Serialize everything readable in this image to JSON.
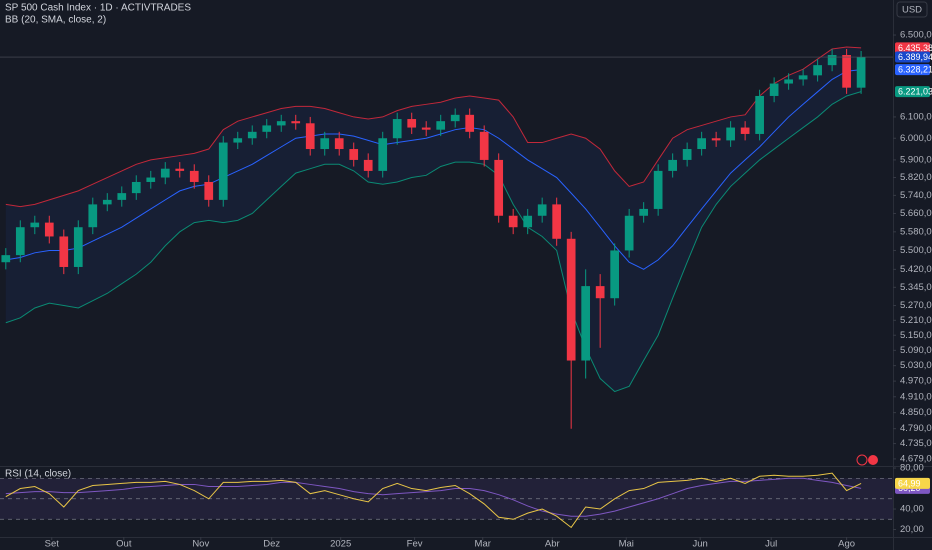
{
  "chart_data": [
    {
      "type": "candlestick",
      "title": "SP 500 Cash Index · 1D · ACTIVTRADES",
      "subtitle": "BB (20, SMA, close, 2)",
      "currency": "USD",
      "log_scale": true,
      "grid": false,
      "ylim": [
        4657,
        6679
      ],
      "yticks": [
        {
          "value": 6500,
          "label": "6.500,00"
        },
        {
          "value": 6100,
          "label": "6.100,00"
        },
        {
          "value": 6000,
          "label": "6.000,00"
        },
        {
          "value": 5900,
          "label": "5.900,00"
        },
        {
          "value": 5820,
          "label": "5.820,00"
        },
        {
          "value": 5740,
          "label": "5.740,00"
        },
        {
          "value": 5660,
          "label": "5.660,00"
        },
        {
          "value": 5580,
          "label": "5.580,00"
        },
        {
          "value": 5500,
          "label": "5.500,00"
        },
        {
          "value": 5420,
          "label": "5.420,00"
        },
        {
          "value": 5345,
          "label": "5.345,00"
        },
        {
          "value": 5270,
          "label": "5.270,00"
        },
        {
          "value": 5210,
          "label": "5.210,00"
        },
        {
          "value": 5150,
          "label": "5.150,00"
        },
        {
          "value": 5090,
          "label": "5.090,00"
        },
        {
          "value": 5030,
          "label": "5.030,00"
        },
        {
          "value": 4970,
          "label": "4.970,00"
        },
        {
          "value": 4910,
          "label": "4.910,00"
        },
        {
          "value": 4850,
          "label": "4.850,00"
        },
        {
          "value": 4790,
          "label": "4.790,00"
        },
        {
          "value": 4735,
          "label": "4.735,00"
        },
        {
          "value": 4679,
          "label": "4.679,00"
        }
      ],
      "xlim": [
        -0.4,
        61.2
      ],
      "x": [
        0,
        1,
        2,
        3,
        4,
        5,
        6,
        7,
        8,
        9,
        10,
        11,
        12,
        13,
        14,
        15,
        16,
        17,
        18,
        19,
        20,
        21,
        22,
        23,
        24,
        25,
        26,
        27,
        28,
        29,
        30,
        31,
        32,
        33,
        34,
        35,
        36,
        37,
        38,
        39,
        40,
        41,
        42,
        43,
        44,
        45,
        46,
        47,
        48,
        49,
        50,
        51,
        52,
        53,
        54,
        55,
        56,
        57,
        58,
        59
      ],
      "up_color": "#089981",
      "down_color": "#f23645",
      "tag_color": "#1848cc",
      "last_value_label": "6.389,94",
      "open": [
        5450,
        5480,
        5600,
        5620,
        5560,
        5430,
        5600,
        5700,
        5720,
        5750,
        5800,
        5820,
        5860,
        5850,
        5800,
        5720,
        5980,
        6000,
        6030,
        6060,
        6080,
        6070,
        5950,
        6000,
        5950,
        5900,
        5850,
        6000,
        6090,
        6050,
        6040,
        6080,
        6110,
        6030,
        5900,
        5650,
        5600,
        5650,
        5700,
        5550,
        5050,
        5350,
        5300,
        5500,
        5650,
        5680,
        5850,
        5900,
        5950,
        6000,
        5990,
        6050,
        6020,
        6200,
        6260,
        6280,
        6300,
        6350,
        6400,
        6240
      ],
      "high": [
        5510,
        5630,
        5650,
        5650,
        5590,
        5630,
        5730,
        5750,
        5780,
        5830,
        5850,
        5890,
        5890,
        5880,
        5830,
        6010,
        6030,
        6060,
        6090,
        6110,
        6110,
        6100,
        6030,
        6030,
        5980,
        5930,
        6030,
        6120,
        6120,
        6080,
        6110,
        6140,
        6140,
        6060,
        5930,
        5680,
        5680,
        5730,
        5730,
        5580,
        5420,
        5400,
        5530,
        5680,
        5710,
        5880,
        5930,
        5980,
        6030,
        6030,
        6080,
        6080,
        6230,
        6290,
        6310,
        6330,
        6380,
        6430,
        6430,
        6420
      ],
      "low": [
        5420,
        5450,
        5570,
        5530,
        5400,
        5400,
        5570,
        5670,
        5690,
        5720,
        5770,
        5790,
        5820,
        5770,
        5690,
        5690,
        5950,
        5970,
        6000,
        6030,
        6040,
        5920,
        5920,
        5920,
        5870,
        5820,
        5820,
        5970,
        6020,
        6010,
        6010,
        6050,
        6000,
        5870,
        5620,
        5570,
        5570,
        5620,
        5520,
        4790,
        4980,
        5100,
        5270,
        5470,
        5620,
        5650,
        5820,
        5870,
        5920,
        5960,
        5960,
        5990,
        5990,
        6170,
        6230,
        6250,
        6270,
        6320,
        6210,
        6210
      ],
      "close": [
        5480,
        5600,
        5620,
        5560,
        5430,
        5600,
        5700,
        5720,
        5750,
        5800,
        5820,
        5860,
        5850,
        5800,
        5720,
        5980,
        6000,
        6030,
        6060,
        6080,
        6070,
        5950,
        6000,
        5950,
        5900,
        5850,
        6000,
        6090,
        6050,
        6040,
        6080,
        6110,
        6030,
        5900,
        5650,
        5600,
        5650,
        5700,
        5550,
        5050,
        5350,
        5300,
        5500,
        5650,
        5680,
        5850,
        5900,
        5950,
        6000,
        5990,
        6050,
        6020,
        6200,
        6260,
        6280,
        6300,
        6350,
        6400,
        6240,
        6389.94
      ],
      "band_fill": "rgba(41,98,255,0.07)",
      "series": [
        {
          "color": "#c2283a",
          "tag_color": "#f23645",
          "last_value_label": "6.435,38",
          "values": [
            5700,
            5690,
            5700,
            5720,
            5740,
            5760,
            5790,
            5820,
            5850,
            5880,
            5900,
            5910,
            5920,
            5930,
            5950,
            6040,
            6080,
            6100,
            6120,
            6140,
            6150,
            6150,
            6140,
            6120,
            6100,
            6090,
            6100,
            6130,
            6150,
            6160,
            6170,
            6190,
            6200,
            6190,
            6180,
            6100,
            5980,
            5980,
            6000,
            6020,
            6000,
            5950,
            5850,
            5780,
            5800,
            5900,
            6000,
            6040,
            6060,
            6080,
            6100,
            6110,
            6200,
            6260,
            6300,
            6330,
            6380,
            6430,
            6440,
            6435.38
          ]
        },
        {
          "color": "#2962ff",
          "tag_color": "#2962ff",
          "last_value_label": "6.328,21",
          "values": [
            5460,
            5470,
            5490,
            5500,
            5500,
            5510,
            5540,
            5570,
            5600,
            5640,
            5680,
            5720,
            5760,
            5780,
            5790,
            5820,
            5850,
            5880,
            5920,
            5960,
            6000,
            6010,
            6020,
            6020,
            6010,
            5990,
            5970,
            5980,
            5990,
            6000,
            6020,
            6040,
            6050,
            6040,
            6000,
            5950,
            5900,
            5860,
            5820,
            5750,
            5680,
            5600,
            5520,
            5450,
            5420,
            5460,
            5520,
            5600,
            5680,
            5760,
            5840,
            5900,
            5960,
            6030,
            6100,
            6160,
            6220,
            6280,
            6320,
            6328.21
          ]
        },
        {
          "color": "#0b8a74",
          "tag_color": "#089981",
          "last_value_label": "6.221,03",
          "values": [
            5200,
            5220,
            5260,
            5280,
            5270,
            5260,
            5290,
            5320,
            5360,
            5400,
            5450,
            5520,
            5580,
            5620,
            5630,
            5620,
            5630,
            5660,
            5720,
            5780,
            5840,
            5860,
            5880,
            5880,
            5850,
            5800,
            5790,
            5800,
            5820,
            5830,
            5870,
            5890,
            5890,
            5880,
            5830,
            5700,
            5600,
            5560,
            5500,
            5250,
            5100,
            4980,
            4930,
            4950,
            5050,
            5150,
            5300,
            5450,
            5600,
            5700,
            5780,
            5840,
            5900,
            5950,
            6000,
            6050,
            6100,
            6160,
            6200,
            6221.03
          ]
        }
      ]
    },
    {
      "type": "line",
      "title": "RSI (14, close)",
      "grid": false,
      "ylim": [
        12.7,
        82
      ],
      "yticks": [
        {
          "value": 80,
          "label": "80,00"
        },
        {
          "value": 40,
          "label": "40,00"
        },
        {
          "value": 20,
          "label": "20,00"
        }
      ],
      "levels": [
        70,
        50,
        30
      ],
      "band_color": "rgba(126,87,194,0.12)",
      "xlim": [
        -0.4,
        61.2
      ],
      "xticks": [
        {
          "value": 3.17,
          "label": "Set"
        },
        {
          "value": 8.14,
          "label": "Out"
        },
        {
          "value": 13.45,
          "label": "Nov"
        },
        {
          "value": 18.34,
          "label": "Dez"
        },
        {
          "value": 23.1,
          "label": "2025"
        },
        {
          "value": 28.2,
          "label": "Fev"
        },
        {
          "value": 32.9,
          "label": "Mar"
        },
        {
          "value": 37.7,
          "label": "Abr"
        },
        {
          "value": 42.8,
          "label": "Mai"
        },
        {
          "value": 47.9,
          "label": "Jun"
        },
        {
          "value": 52.8,
          "label": "Jul"
        },
        {
          "value": 58.0,
          "label": "Ago"
        }
      ],
      "x": [
        0,
        1,
        2,
        3,
        4,
        5,
        6,
        7,
        8,
        9,
        10,
        11,
        12,
        13,
        14,
        15,
        16,
        17,
        18,
        19,
        20,
        21,
        22,
        23,
        24,
        25,
        26,
        27,
        28,
        29,
        30,
        31,
        32,
        33,
        34,
        35,
        36,
        37,
        38,
        39,
        40,
        41,
        42,
        43,
        44,
        45,
        46,
        47,
        48,
        49,
        50,
        51,
        52,
        53,
        54,
        55,
        56,
        57,
        58,
        59
      ],
      "series": [
        {
          "color": "#7e57c2",
          "tag_color": "#7e57c2",
          "last_value_label": "60,20",
          "values": [
            55,
            56,
            57,
            57,
            56,
            56,
            57,
            58,
            59,
            61,
            62,
            63,
            64,
            64,
            62,
            62,
            62,
            63,
            64,
            66,
            66,
            64,
            62,
            60,
            57,
            55,
            54,
            55,
            56,
            57,
            58,
            60,
            60,
            58,
            54,
            49,
            43,
            38,
            35,
            33,
            33,
            35,
            38,
            42,
            46,
            50,
            55,
            60,
            63,
            65,
            67,
            67,
            68,
            69,
            70,
            70,
            68,
            66,
            63,
            60.2
          ]
        },
        {
          "color": "#e8c547",
          "tag_color": "#f7d64a",
          "last_value_label": "64,99",
          "values": [
            52,
            60,
            62,
            55,
            42,
            58,
            63,
            64,
            65,
            66,
            66,
            67,
            64,
            58,
            50,
            66,
            66,
            67,
            67,
            68,
            66,
            55,
            58,
            54,
            50,
            47,
            60,
            65,
            60,
            58,
            61,
            63,
            55,
            45,
            32,
            30,
            36,
            40,
            33,
            22,
            42,
            40,
            50,
            58,
            60,
            66,
            67,
            68,
            70,
            67,
            70,
            65,
            72,
            73,
            72,
            72,
            73,
            75,
            58,
            64.99
          ]
        }
      ]
    }
  ]
}
